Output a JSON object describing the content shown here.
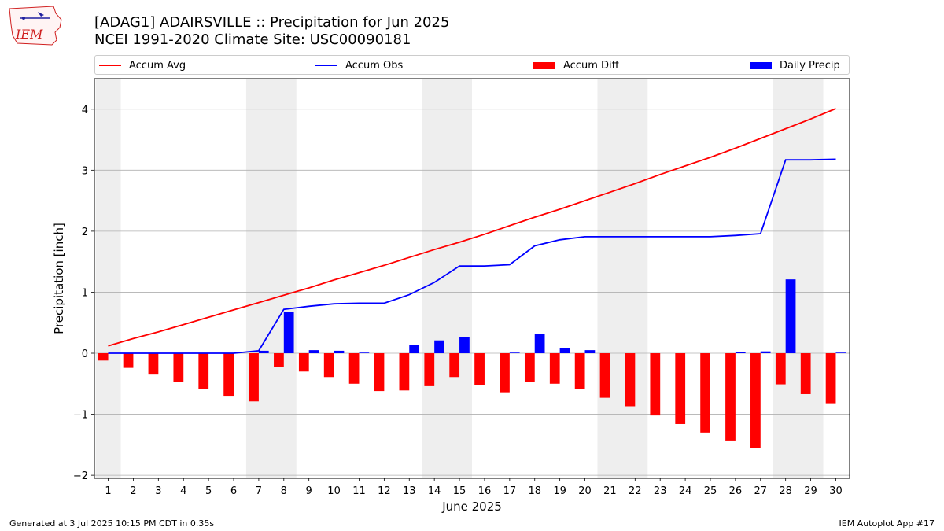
{
  "header": {
    "logo_text": "IEM",
    "title_line1": "[ADAG1] ADAIRSVILLE :: Precipitation for Jun 2025",
    "title_line2": "NCEI 1991-2020 Climate Site: USC00090181"
  },
  "footer": {
    "left": "Generated at 3 Jul 2025 10:15 PM CDT in 0.35s",
    "right": "IEM Autoplot App #17"
  },
  "colors": {
    "avg": "#ff0000",
    "obs": "#0000ff",
    "diff": "#ff0000",
    "daily": "#0000ff",
    "weekend_band": "#eeeeee",
    "grid": "#b0b0b0"
  },
  "chart_data": {
    "type": "bar",
    "xlabel": "June 2025",
    "ylabel": "Precipitation [inch]",
    "ylim": [
      -2.05,
      4.5
    ],
    "yticks": [
      -2,
      -1,
      0,
      1,
      2,
      3,
      4
    ],
    "ytick_labels": [
      "−2",
      "−1",
      "0",
      "1",
      "2",
      "3",
      "4"
    ],
    "grid": "horizontal",
    "legend_position": "top",
    "x": [
      1,
      2,
      3,
      4,
      5,
      6,
      7,
      8,
      9,
      10,
      11,
      12,
      13,
      14,
      15,
      16,
      17,
      18,
      19,
      20,
      21,
      22,
      23,
      24,
      25,
      26,
      27,
      28,
      29,
      30
    ],
    "weekend_bands": [
      [
        1,
        1
      ],
      [
        7,
        8
      ],
      [
        14,
        15
      ],
      [
        21,
        22
      ],
      [
        28,
        29
      ]
    ],
    "series": [
      {
        "name": "Accum Avg",
        "kind": "line",
        "values": [
          0.12,
          0.24,
          0.35,
          0.47,
          0.59,
          0.71,
          0.83,
          0.95,
          1.07,
          1.2,
          1.32,
          1.44,
          1.57,
          1.7,
          1.82,
          1.95,
          2.09,
          2.23,
          2.36,
          2.5,
          2.64,
          2.78,
          2.93,
          3.07,
          3.21,
          3.36,
          3.52,
          3.68,
          3.84,
          4.01
        ]
      },
      {
        "name": "Accum Obs",
        "kind": "line",
        "values": [
          0.0,
          0.0,
          0.0,
          0.0,
          0.0,
          0.0,
          0.04,
          0.72,
          0.77,
          0.81,
          0.82,
          0.82,
          0.96,
          1.16,
          1.43,
          1.43,
          1.45,
          1.76,
          1.86,
          1.91,
          1.91,
          1.91,
          1.91,
          1.91,
          1.91,
          1.93,
          1.96,
          3.17,
          3.17,
          3.18
        ]
      },
      {
        "name": "Accum Diff",
        "kind": "bar",
        "values": [
          -0.12,
          -0.24,
          -0.35,
          -0.47,
          -0.59,
          -0.71,
          -0.79,
          -0.23,
          -0.3,
          -0.39,
          -0.5,
          -0.62,
          -0.61,
          -0.54,
          -0.39,
          -0.52,
          -0.64,
          -0.47,
          -0.5,
          -0.59,
          -0.73,
          -0.87,
          -1.02,
          -1.16,
          -1.3,
          -1.43,
          -1.56,
          -0.51,
          -0.67,
          -0.82
        ]
      },
      {
        "name": "Daily Precip",
        "kind": "bar",
        "values": [
          0,
          0,
          0,
          0,
          0,
          0,
          0.04,
          0.68,
          0.05,
          0.04,
          0.01,
          0,
          0.13,
          0.21,
          0.27,
          0,
          0.01,
          0.31,
          0.09,
          0.05,
          0,
          0,
          0,
          0,
          0,
          0.02,
          0.03,
          1.21,
          0,
          0.01
        ]
      }
    ]
  }
}
